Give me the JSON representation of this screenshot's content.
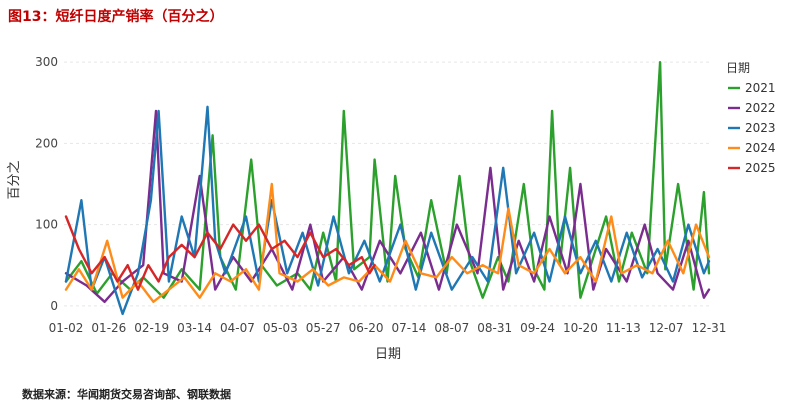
{
  "title": "图13：短纤日度产销率（百分之）",
  "source": "数据来源：华闻期货交易咨询部、钢联数据",
  "chart_data": {
    "type": "line",
    "xlabel": "日期",
    "ylabel": "百分之",
    "legend_title": "日期",
    "legend_position": "right",
    "grid": true,
    "ylim": [
      -15,
      315
    ],
    "yticks": [
      0,
      100,
      200,
      300
    ],
    "x_ticks": [
      "01-02",
      "01-26",
      "02-19",
      "03-14",
      "04-07",
      "05-03",
      "05-27",
      "06-20",
      "07-14",
      "08-07",
      "08-31",
      "09-24",
      "10-20",
      "11-13",
      "12-07",
      "12-31"
    ],
    "n_points": 251,
    "series": [
      {
        "name": "2021",
        "color": "#2ca02c",
        "points": [
          [
            0,
            30
          ],
          [
            6,
            55
          ],
          [
            12,
            15
          ],
          [
            18,
            40
          ],
          [
            25,
            20
          ],
          [
            30,
            35
          ],
          [
            38,
            10
          ],
          [
            45,
            45
          ],
          [
            52,
            20
          ],
          [
            57,
            210
          ],
          [
            60,
            60
          ],
          [
            66,
            20
          ],
          [
            72,
            180
          ],
          [
            76,
            50
          ],
          [
            82,
            25
          ],
          [
            90,
            40
          ],
          [
            95,
            20
          ],
          [
            100,
            90
          ],
          [
            105,
            30
          ],
          [
            108,
            240
          ],
          [
            112,
            45
          ],
          [
            118,
            60
          ],
          [
            120,
            180
          ],
          [
            125,
            30
          ],
          [
            128,
            160
          ],
          [
            132,
            70
          ],
          [
            137,
            35
          ],
          [
            142,
            130
          ],
          [
            148,
            40
          ],
          [
            153,
            160
          ],
          [
            157,
            55
          ],
          [
            162,
            10
          ],
          [
            168,
            60
          ],
          [
            172,
            30
          ],
          [
            178,
            150
          ],
          [
            182,
            45
          ],
          [
            186,
            20
          ],
          [
            189,
            240
          ],
          [
            192,
            50
          ],
          [
            196,
            170
          ],
          [
            200,
            10
          ],
          [
            205,
            60
          ],
          [
            210,
            110
          ],
          [
            215,
            30
          ],
          [
            220,
            90
          ],
          [
            226,
            40
          ],
          [
            231,
            300
          ],
          [
            233,
            45
          ],
          [
            238,
            150
          ],
          [
            244,
            20
          ],
          [
            248,
            140
          ],
          [
            250,
            40
          ]
        ]
      },
      {
        "name": "2022",
        "color": "#7b2c8f",
        "points": [
          [
            0,
            40
          ],
          [
            8,
            25
          ],
          [
            15,
            5
          ],
          [
            22,
            30
          ],
          [
            30,
            50
          ],
          [
            35,
            240
          ],
          [
            38,
            40
          ],
          [
            45,
            30
          ],
          [
            52,
            160
          ],
          [
            58,
            20
          ],
          [
            65,
            60
          ],
          [
            72,
            30
          ],
          [
            80,
            70
          ],
          [
            88,
            20
          ],
          [
            95,
            100
          ],
          [
            100,
            30
          ],
          [
            108,
            60
          ],
          [
            115,
            20
          ],
          [
            122,
            80
          ],
          [
            130,
            40
          ],
          [
            138,
            90
          ],
          [
            145,
            20
          ],
          [
            152,
            100
          ],
          [
            160,
            40
          ],
          [
            165,
            170
          ],
          [
            170,
            20
          ],
          [
            176,
            80
          ],
          [
            182,
            30
          ],
          [
            188,
            110
          ],
          [
            195,
            40
          ],
          [
            200,
            150
          ],
          [
            205,
            20
          ],
          [
            210,
            70
          ],
          [
            218,
            30
          ],
          [
            225,
            100
          ],
          [
            230,
            40
          ],
          [
            236,
            20
          ],
          [
            242,
            80
          ],
          [
            248,
            10
          ],
          [
            250,
            20
          ]
        ]
      },
      {
        "name": "2023",
        "color": "#1f77b4",
        "points": [
          [
            0,
            30
          ],
          [
            6,
            130
          ],
          [
            10,
            20
          ],
          [
            15,
            60
          ],
          [
            22,
            -10
          ],
          [
            28,
            40
          ],
          [
            33,
            130
          ],
          [
            36,
            240
          ],
          [
            40,
            30
          ],
          [
            45,
            110
          ],
          [
            50,
            60
          ],
          [
            55,
            245
          ],
          [
            58,
            80
          ],
          [
            62,
            40
          ],
          [
            70,
            110
          ],
          [
            75,
            30
          ],
          [
            80,
            130
          ],
          [
            86,
            40
          ],
          [
            92,
            90
          ],
          [
            98,
            25
          ],
          [
            104,
            110
          ],
          [
            110,
            40
          ],
          [
            116,
            80
          ],
          [
            122,
            30
          ],
          [
            130,
            100
          ],
          [
            136,
            20
          ],
          [
            142,
            90
          ],
          [
            150,
            20
          ],
          [
            158,
            60
          ],
          [
            164,
            30
          ],
          [
            170,
            170
          ],
          [
            175,
            40
          ],
          [
            182,
            90
          ],
          [
            188,
            30
          ],
          [
            194,
            110
          ],
          [
            200,
            40
          ],
          [
            206,
            80
          ],
          [
            212,
            30
          ],
          [
            218,
            90
          ],
          [
            224,
            35
          ],
          [
            230,
            70
          ],
          [
            236,
            30
          ],
          [
            242,
            100
          ],
          [
            248,
            40
          ],
          [
            250,
            55
          ]
        ]
      },
      {
        "name": "2024",
        "color": "#ff8c1a",
        "points": [
          [
            0,
            20
          ],
          [
            5,
            45
          ],
          [
            10,
            20
          ],
          [
            16,
            80
          ],
          [
            22,
            10
          ],
          [
            28,
            30
          ],
          [
            34,
            5
          ],
          [
            40,
            20
          ],
          [
            46,
            35
          ],
          [
            52,
            10
          ],
          [
            58,
            40
          ],
          [
            64,
            30
          ],
          [
            70,
            45
          ],
          [
            75,
            20
          ],
          [
            80,
            150
          ],
          [
            83,
            40
          ],
          [
            90,
            30
          ],
          [
            96,
            45
          ],
          [
            102,
            25
          ],
          [
            108,
            35
          ],
          [
            114,
            30
          ],
          [
            120,
            50
          ],
          [
            126,
            30
          ],
          [
            132,
            80
          ],
          [
            138,
            40
          ],
          [
            144,
            35
          ],
          [
            150,
            60
          ],
          [
            156,
            40
          ],
          [
            162,
            50
          ],
          [
            168,
            40
          ],
          [
            172,
            120
          ],
          [
            176,
            50
          ],
          [
            182,
            40
          ],
          [
            188,
            70
          ],
          [
            194,
            40
          ],
          [
            200,
            60
          ],
          [
            206,
            30
          ],
          [
            212,
            110
          ],
          [
            216,
            40
          ],
          [
            222,
            50
          ],
          [
            228,
            40
          ],
          [
            234,
            80
          ],
          [
            240,
            40
          ],
          [
            245,
            100
          ],
          [
            250,
            60
          ]
        ]
      },
      {
        "name": "2025",
        "color": "#d62728",
        "points": [
          [
            0,
            110
          ],
          [
            5,
            70
          ],
          [
            10,
            40
          ],
          [
            15,
            60
          ],
          [
            20,
            30
          ],
          [
            24,
            50
          ],
          [
            28,
            20
          ],
          [
            32,
            50
          ],
          [
            36,
            30
          ],
          [
            40,
            60
          ],
          [
            45,
            75
          ],
          [
            50,
            60
          ],
          [
            55,
            90
          ],
          [
            60,
            70
          ],
          [
            65,
            100
          ],
          [
            70,
            80
          ],
          [
            75,
            100
          ],
          [
            80,
            70
          ],
          [
            85,
            80
          ],
          [
            90,
            60
          ],
          [
            95,
            90
          ],
          [
            100,
            60
          ],
          [
            105,
            70
          ],
          [
            110,
            50
          ],
          [
            115,
            60
          ],
          [
            118,
            40
          ],
          [
            120,
            50
          ]
        ]
      }
    ]
  }
}
